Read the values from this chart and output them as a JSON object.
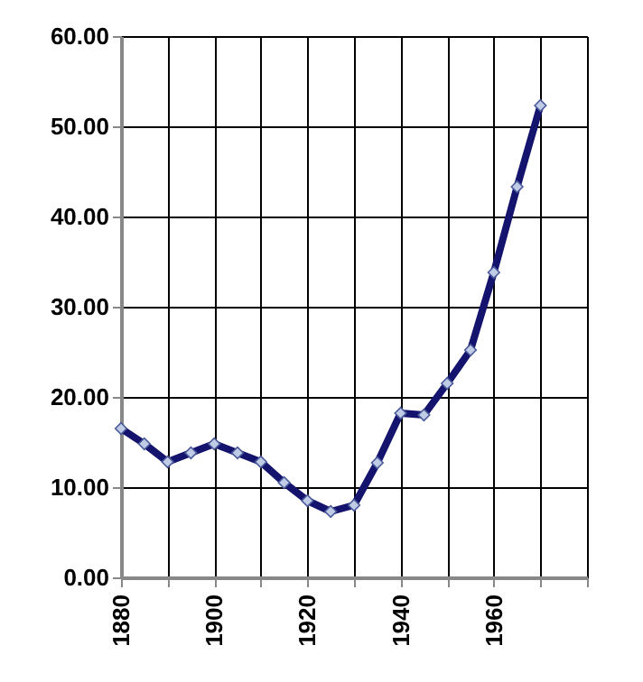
{
  "chart_data": {
    "type": "line",
    "x": [
      1880,
      1885,
      1890,
      1895,
      1900,
      1905,
      1910,
      1915,
      1920,
      1925,
      1930,
      1935,
      1940,
      1945,
      1950,
      1955,
      1960,
      1965,
      1970
    ],
    "series": [
      {
        "color": "#14146e",
        "values": [
          16.5,
          14.8,
          12.8,
          13.8,
          14.8,
          13.8,
          12.8,
          10.5,
          8.5,
          7.3,
          8.0,
          12.7,
          18.2,
          18.0,
          21.5,
          25.2,
          33.8,
          43.3,
          52.3
        ]
      }
    ],
    "xlim": [
      1880,
      1980
    ],
    "xticks": [
      1880,
      {
        "value": 1890,
        "label": null
      },
      1900,
      {
        "value": 1910,
        "label": null
      },
      1920,
      {
        "value": 1930,
        "label": null
      },
      1940,
      {
        "value": 1950,
        "label": null
      },
      1960,
      {
        "value": 1970,
        "label": null
      },
      {
        "value": 1980,
        "label": null
      }
    ],
    "ylim": [
      0,
      60
    ],
    "yticks": [
      {
        "value": 0,
        "label": "0.00"
      },
      {
        "value": 10,
        "label": "10.00"
      },
      {
        "value": 20,
        "label": "20.00"
      },
      {
        "value": 30,
        "label": "30.00"
      },
      {
        "value": 40,
        "label": "40.00"
      },
      {
        "value": 50,
        "label": "50.00"
      },
      {
        "value": 60,
        "label": "60.00"
      }
    ],
    "grid": true,
    "marker": "diamond",
    "line_style": "solid"
  }
}
